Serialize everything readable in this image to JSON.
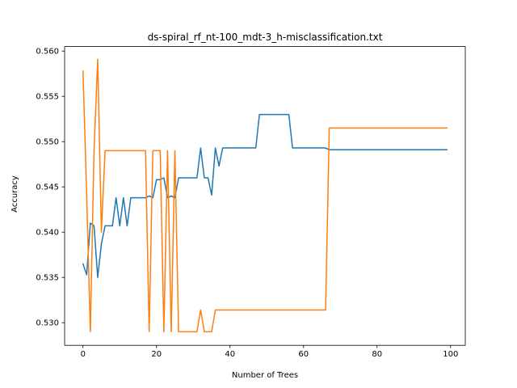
{
  "chart_data": {
    "type": "line",
    "title": "ds-spiral_rf_nt-100_mdt-3_h-misclassification.txt",
    "xlabel": "Number of Trees",
    "ylabel": "Accuracy",
    "xlim": [
      -5,
      104
    ],
    "ylim": [
      0.5275,
      0.5605
    ],
    "xticks": [
      0,
      20,
      40,
      60,
      80,
      100
    ],
    "yticks": [
      0.53,
      0.535,
      0.54,
      0.545,
      0.55,
      0.555,
      0.56
    ],
    "xtick_labels": [
      "0",
      "20",
      "40",
      "60",
      "80",
      "100"
    ],
    "ytick_labels": [
      "0.530",
      "0.535",
      "0.540",
      "0.545",
      "0.550",
      "0.555",
      "0.560"
    ],
    "grid": false,
    "series": [
      {
        "color": "#1f77b4",
        "points": [
          [
            0,
            0.5365
          ],
          [
            1,
            0.5353
          ],
          [
            2,
            0.541
          ],
          [
            3,
            0.5407
          ],
          [
            4,
            0.535
          ],
          [
            5,
            0.5387
          ],
          [
            6,
            0.5407
          ],
          [
            7,
            0.5407
          ],
          [
            8,
            0.5407
          ],
          [
            9,
            0.5438
          ],
          [
            10,
            0.5407
          ],
          [
            11,
            0.5438
          ],
          [
            12,
            0.5407
          ],
          [
            13,
            0.5438
          ],
          [
            14,
            0.5438
          ],
          [
            15,
            0.5438
          ],
          [
            16,
            0.5438
          ],
          [
            17,
            0.5438
          ],
          [
            18,
            0.544
          ],
          [
            19,
            0.5438
          ],
          [
            20,
            0.5458
          ],
          [
            21,
            0.5458
          ],
          [
            22,
            0.546
          ],
          [
            23,
            0.5438
          ],
          [
            24,
            0.544
          ],
          [
            25,
            0.5438
          ],
          [
            26,
            0.546
          ],
          [
            27,
            0.546
          ],
          [
            28,
            0.546
          ],
          [
            29,
            0.546
          ],
          [
            30,
            0.546
          ],
          [
            31,
            0.546
          ],
          [
            32,
            0.5493
          ],
          [
            33,
            0.546
          ],
          [
            34,
            0.546
          ],
          [
            35,
            0.5441
          ],
          [
            36,
            0.5493
          ],
          [
            37,
            0.5473
          ],
          [
            38,
            0.5493
          ],
          [
            39,
            0.5493
          ],
          [
            40,
            0.5493
          ],
          [
            41,
            0.5493
          ],
          [
            42,
            0.5493
          ],
          [
            43,
            0.5493
          ],
          [
            44,
            0.5493
          ],
          [
            45,
            0.5493
          ],
          [
            46,
            0.5493
          ],
          [
            47,
            0.5493
          ],
          [
            48,
            0.553
          ],
          [
            49,
            0.553
          ],
          [
            50,
            0.553
          ],
          [
            51,
            0.553
          ],
          [
            52,
            0.553
          ],
          [
            53,
            0.553
          ],
          [
            54,
            0.553
          ],
          [
            55,
            0.553
          ],
          [
            56,
            0.553
          ],
          [
            57,
            0.5493
          ],
          [
            58,
            0.5493
          ],
          [
            59,
            0.5493
          ],
          [
            60,
            0.5493
          ],
          [
            61,
            0.5493
          ],
          [
            62,
            0.5493
          ],
          [
            63,
            0.5493
          ],
          [
            64,
            0.5493
          ],
          [
            65,
            0.5493
          ],
          [
            66,
            0.5493
          ],
          [
            67,
            0.5491
          ],
          [
            68,
            0.5491
          ],
          [
            70,
            0.5491
          ],
          [
            75,
            0.5491
          ],
          [
            80,
            0.5491
          ],
          [
            85,
            0.5491
          ],
          [
            90,
            0.5491
          ],
          [
            95,
            0.5491
          ],
          [
            99,
            0.5491
          ]
        ]
      },
      {
        "color": "#ff7f0e",
        "points": [
          [
            0,
            0.5578
          ],
          [
            1,
            0.544
          ],
          [
            2,
            0.529
          ],
          [
            3,
            0.549
          ],
          [
            4,
            0.5591
          ],
          [
            5,
            0.54
          ],
          [
            6,
            0.549
          ],
          [
            7,
            0.549
          ],
          [
            8,
            0.549
          ],
          [
            9,
            0.549
          ],
          [
            10,
            0.549
          ],
          [
            11,
            0.549
          ],
          [
            12,
            0.549
          ],
          [
            13,
            0.549
          ],
          [
            14,
            0.549
          ],
          [
            15,
            0.549
          ],
          [
            16,
            0.549
          ],
          [
            17,
            0.549
          ],
          [
            18,
            0.529
          ],
          [
            19,
            0.549
          ],
          [
            20,
            0.549
          ],
          [
            21,
            0.549
          ],
          [
            22,
            0.529
          ],
          [
            23,
            0.549
          ],
          [
            24,
            0.529
          ],
          [
            25,
            0.549
          ],
          [
            26,
            0.529
          ],
          [
            27,
            0.529
          ],
          [
            28,
            0.529
          ],
          [
            29,
            0.529
          ],
          [
            30,
            0.529
          ],
          [
            31,
            0.529
          ],
          [
            32,
            0.5314
          ],
          [
            33,
            0.529
          ],
          [
            34,
            0.529
          ],
          [
            35,
            0.529
          ],
          [
            36,
            0.5314
          ],
          [
            37,
            0.5314
          ],
          [
            40,
            0.5314
          ],
          [
            45,
            0.5314
          ],
          [
            50,
            0.5314
          ],
          [
            55,
            0.5314
          ],
          [
            60,
            0.5314
          ],
          [
            65,
            0.5314
          ],
          [
            66,
            0.5314
          ],
          [
            67,
            0.5515
          ],
          [
            70,
            0.5515
          ],
          [
            75,
            0.5515
          ],
          [
            80,
            0.5515
          ],
          [
            85,
            0.5515
          ],
          [
            90,
            0.5515
          ],
          [
            95,
            0.5515
          ],
          [
            99,
            0.5515
          ]
        ]
      }
    ]
  }
}
